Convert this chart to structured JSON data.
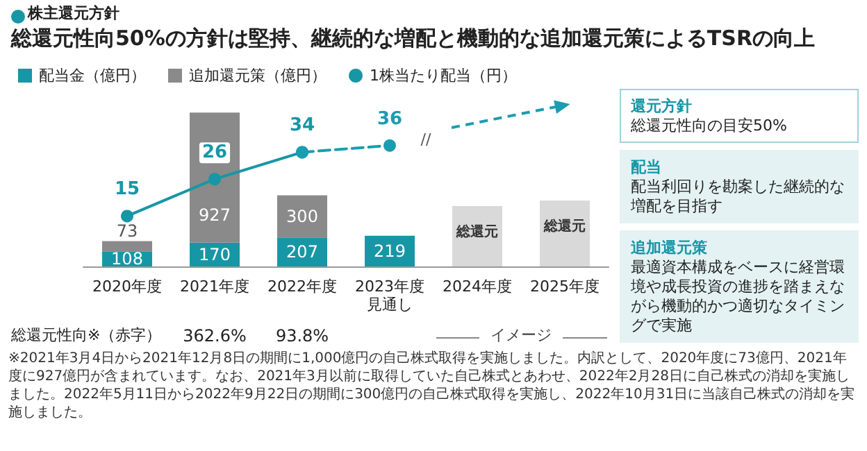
{
  "chart_data": [
    {
      "type": "bar",
      "subtitle": "株主還元方針",
      "title": "総還元性向50%の方針は堅持、継続的な増配と機動的な追加還元策によるTSRの向上",
      "categories": [
        "2020年度",
        "2021年度",
        "2022年度",
        "2023年度見通し",
        "2024年度",
        "2025年度"
      ],
      "stacked": true,
      "legend": "top left",
      "tick_labels": "x",
      "marker": "circle",
      "series": [
        {
          "name": "配当金（億円）",
          "color": "#1797a6",
          "values": [
            108,
            170,
            207,
            219,
            null,
            null
          ],
          "value_labels": [
            "108",
            "170",
            "207",
            "219",
            null,
            null
          ]
        },
        {
          "name": "追加還元策（億円）",
          "color": "#8a8a8a",
          "values": [
            73,
            927,
            300,
            null,
            null,
            null
          ],
          "value_labels": [
            "73",
            "927",
            "300",
            null,
            null,
            null
          ]
        },
        {
          "color": "#d9d9d9",
          "values": [
            null,
            null,
            null,
            null,
            430,
            470
          ],
          "value_labels": [
            null,
            null,
            null,
            null,
            "総還元",
            "総還元"
          ]
        },
        {
          "type": "line",
          "axis": "y2",
          "name": "1株当たり配当（円）",
          "color": "#1797a6",
          "line_style": "solid",
          "values": [
            15,
            26,
            34,
            null,
            null,
            null
          ],
          "value_labels": [
            "15",
            "26",
            "34",
            null,
            null,
            null
          ]
        },
        {
          "type": "line",
          "axis": "y2",
          "color": "#1a9db0",
          "line_style": "dashed",
          "values": [
            null,
            null,
            34,
            36,
            null,
            null
          ],
          "value_labels": [
            null,
            null,
            null,
            "36",
            null,
            null
          ]
        }
      ],
      "annotations": [
        "//",
        "総還元性向※（赤字）",
        "362.6%",
        "93.8%",
        "イメージ",
        "※2021年3月4日から2021年12月8日の期間に1,000億円の自己株式取得を実施しました。内訳として、2020年度に73億円、2021年度に927億円が含まれています。なお、2021年3月以前に取得していた自己株式とあわせ、2022年2月28日に自己株式の消却を実施しました。2022年5月11日から2022年9月22日の期間に300億円の自己株式取得を実施し、2022年10月31日に当該自己株式の消却を実施しました。"
      ]
    },
    {
      "type": "other",
      "annotations": [
        "還元方針",
        "総還元性向の目安50%",
        "配当",
        "配当利回りを勘案した継続的な増配を目指す",
        "追加還元策",
        "最適資本構成をベースに経営環境や成長投資の進捗を踏まえながら機動的かつ適切なタイミングで実施"
      ]
    }
  ]
}
